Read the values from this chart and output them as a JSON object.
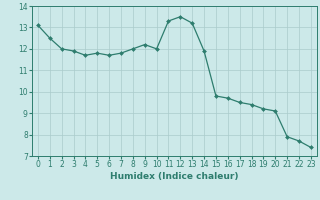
{
  "x": [
    0,
    1,
    2,
    3,
    4,
    5,
    6,
    7,
    8,
    9,
    10,
    11,
    12,
    13,
    14,
    15,
    16,
    17,
    18,
    19,
    20,
    21,
    22,
    23
  ],
  "y": [
    13.1,
    12.5,
    12.0,
    11.9,
    11.7,
    11.8,
    11.7,
    11.8,
    12.0,
    12.2,
    12.0,
    13.3,
    13.5,
    13.2,
    11.9,
    9.8,
    9.7,
    9.5,
    9.4,
    9.2,
    9.1,
    7.9,
    7.7,
    7.4
  ],
  "line_color": "#2e7d6e",
  "marker": "D",
  "marker_size": 2.0,
  "bg_color": "#cce9e9",
  "grid_color_major": "#aacccc",
  "grid_color_minor": "#bbdddd",
  "xlabel": "Humidex (Indice chaleur)",
  "xlim": [
    -0.5,
    23.5
  ],
  "ylim": [
    7,
    14
  ],
  "yticks": [
    7,
    8,
    9,
    10,
    11,
    12,
    13,
    14
  ],
  "xticks": [
    0,
    1,
    2,
    3,
    4,
    5,
    6,
    7,
    8,
    9,
    10,
    11,
    12,
    13,
    14,
    15,
    16,
    17,
    18,
    19,
    20,
    21,
    22,
    23
  ],
  "label_fontsize": 6.5,
  "tick_fontsize": 5.5
}
